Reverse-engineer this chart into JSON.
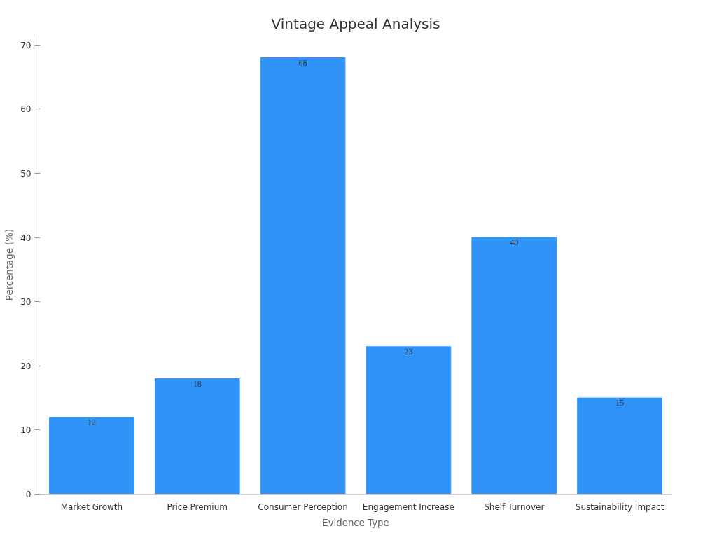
{
  "chart_data": {
    "type": "bar",
    "title": "Vintage Appeal Analysis",
    "xlabel": "Evidence Type",
    "ylabel": "Percentage (%)",
    "categories": [
      "Market Growth",
      "Price Premium",
      "Consumer Perception",
      "Engagement Increase",
      "Shelf Turnover",
      "Sustainability Impact"
    ],
    "values": [
      12,
      18,
      68,
      23,
      40,
      15
    ],
    "color": "#2f93f8",
    "ylim": [
      0,
      71.5
    ],
    "yticks": [
      0,
      10,
      20,
      30,
      40,
      50,
      60,
      70
    ],
    "grid": false,
    "data_labels": true
  }
}
